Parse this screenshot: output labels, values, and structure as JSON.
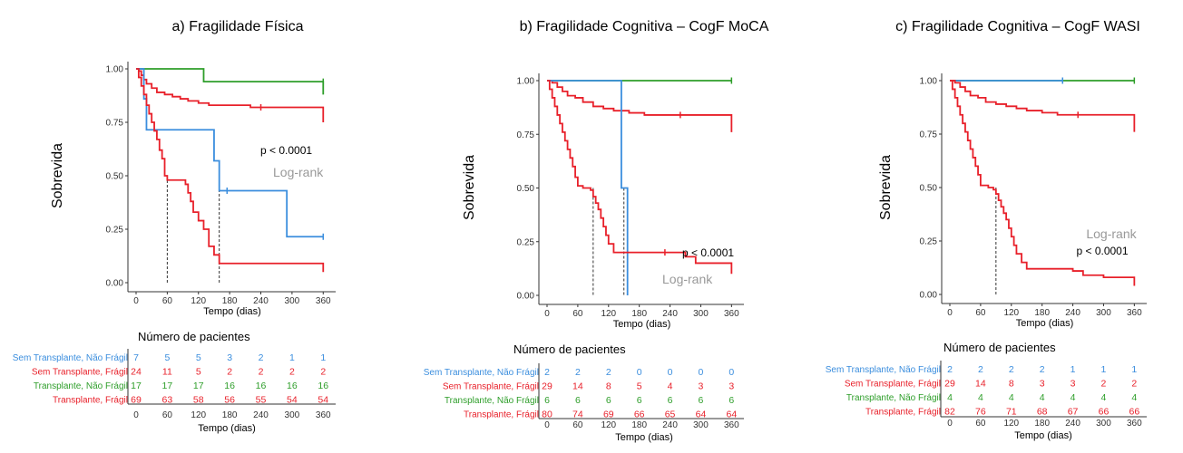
{
  "colors": {
    "blue": "#3b8ede",
    "red": "#e8202a",
    "green": "#2e9e2a",
    "axis": "#333333",
    "logrank": "#999999"
  },
  "risk_table_title": "Número de pacientes",
  "chart_data": [
    {
      "type": "line",
      "title": "a) Fragilidade Física",
      "xlabel": "Tempo (dias)",
      "ylabel": "Sobrevida",
      "xlim": [
        0,
        370
      ],
      "ylim": [
        0,
        1
      ],
      "x_ticks": [
        "0",
        "60",
        "120",
        "180",
        "240",
        "300",
        "360"
      ],
      "y_ticks": [
        "0.00",
        "0.25",
        "0.50",
        "0.75",
        "1.00"
      ],
      "annotation": {
        "pvalue": "p < 0.0001",
        "test": "Log-rank"
      },
      "series": [
        {
          "color_key": "green",
          "censor_x": [
            360
          ],
          "points": [
            [
              0,
              1
            ],
            [
              130,
              1
            ],
            [
              130,
              0.94
            ],
            [
              360,
              0.94
            ],
            [
              360,
              0.88
            ]
          ]
        },
        {
          "color_key": "red",
          "censor_x": [
            240
          ],
          "points": [
            [
              0,
              1
            ],
            [
              5,
              0.99
            ],
            [
              10,
              0.97
            ],
            [
              15,
              0.95
            ],
            [
              20,
              0.93
            ],
            [
              30,
              0.91
            ],
            [
              40,
              0.89
            ],
            [
              55,
              0.88
            ],
            [
              70,
              0.87
            ],
            [
              85,
              0.86
            ],
            [
              100,
              0.85
            ],
            [
              120,
              0.84
            ],
            [
              140,
              0.83
            ],
            [
              180,
              0.83
            ],
            [
              220,
              0.82
            ],
            [
              360,
              0.82
            ],
            [
              360,
              0.75
            ]
          ]
        },
        {
          "color_key": "blue",
          "censor_x": [
            175,
            360
          ],
          "points": [
            [
              0,
              1
            ],
            [
              15,
              1
            ],
            [
              15,
              0.86
            ],
            [
              20,
              0.86
            ],
            [
              20,
              0.715
            ],
            [
              150,
              0.715
            ],
            [
              150,
              0.57
            ],
            [
              160,
              0.57
            ],
            [
              160,
              0.43
            ],
            [
              290,
              0.43
            ],
            [
              290,
              0.215
            ],
            [
              360,
              0.215
            ]
          ]
        },
        {
          "color_key": "red",
          "censor_x": [],
          "points": [
            [
              0,
              1
            ],
            [
              5,
              0.96
            ],
            [
              10,
              0.92
            ],
            [
              15,
              0.88
            ],
            [
              20,
              0.83
            ],
            [
              25,
              0.79
            ],
            [
              30,
              0.75
            ],
            [
              35,
              0.71
            ],
            [
              40,
              0.67
            ],
            [
              45,
              0.62
            ],
            [
              50,
              0.58
            ],
            [
              55,
              0.5
            ],
            [
              60,
              0.48
            ],
            [
              70,
              0.48
            ],
            [
              80,
              0.48
            ],
            [
              90,
              0.48
            ],
            [
              95,
              0.46
            ],
            [
              100,
              0.42
            ],
            [
              105,
              0.38
            ],
            [
              110,
              0.33
            ],
            [
              120,
              0.29
            ],
            [
              130,
              0.25
            ],
            [
              140,
              0.17
            ],
            [
              150,
              0.13
            ],
            [
              160,
              0.09
            ],
            [
              360,
              0.09
            ],
            [
              360,
              0.05
            ]
          ]
        }
      ],
      "median_lines": [
        {
          "x": 60,
          "y": 0.5
        },
        {
          "x": 160,
          "y": 0.5
        }
      ],
      "risk_table": {
        "columns": [
          "0",
          "60",
          "120",
          "180",
          "240",
          "300",
          "360"
        ],
        "rows": [
          {
            "label": "Sem Transplante, Não Frágil",
            "color_key": "blue",
            "values": [
              "7",
              "5",
              "5",
              "3",
              "2",
              "1",
              "1"
            ]
          },
          {
            "label": "Sem Transplante, Frágil",
            "color_key": "red",
            "values": [
              "24",
              "11",
              "5",
              "2",
              "2",
              "2",
              "2"
            ]
          },
          {
            "label": "Transplante, Não Frágil",
            "color_key": "green",
            "values": [
              "17",
              "17",
              "17",
              "16",
              "16",
              "16",
              "16"
            ]
          },
          {
            "label": "Transplante, Frágil",
            "color_key": "red",
            "values": [
              "69",
              "63",
              "58",
              "56",
              "55",
              "54",
              "54"
            ]
          }
        ],
        "xlabel": "Tempo (dias)"
      }
    },
    {
      "type": "line",
      "title": "b) Fragilidade Cognitiva – CogF MoCA",
      "xlabel": "Tempo (dias)",
      "ylabel": "Sobrevida",
      "xlim": [
        0,
        370
      ],
      "ylim": [
        0,
        1
      ],
      "x_ticks": [
        "0",
        "60",
        "120",
        "180",
        "240",
        "300",
        "360"
      ],
      "y_ticks": [
        "0.00",
        "0.25",
        "0.50",
        "0.75",
        "1.00"
      ],
      "annotation": {
        "pvalue": "p < 0.0001",
        "test": "Log-rank"
      },
      "series": [
        {
          "color_key": "green",
          "censor_x": [
            360
          ],
          "points": [
            [
              0,
              1
            ],
            [
              360,
              1
            ]
          ]
        },
        {
          "color_key": "red",
          "censor_x": [
            260
          ],
          "points": [
            [
              0,
              1
            ],
            [
              10,
              0.99
            ],
            [
              20,
              0.97
            ],
            [
              30,
              0.95
            ],
            [
              40,
              0.93
            ],
            [
              55,
              0.92
            ],
            [
              70,
              0.9
            ],
            [
              90,
              0.88
            ],
            [
              110,
              0.87
            ],
            [
              130,
              0.86
            ],
            [
              160,
              0.85
            ],
            [
              190,
              0.84
            ],
            [
              220,
              0.84
            ],
            [
              360,
              0.84
            ],
            [
              360,
              0.76
            ]
          ]
        },
        {
          "color_key": "blue",
          "censor_x": [],
          "points": [
            [
              0,
              1
            ],
            [
              145,
              1
            ],
            [
              145,
              0.5
            ],
            [
              157,
              0.5
            ],
            [
              157,
              0
            ]
          ]
        },
        {
          "color_key": "red",
          "censor_x": [
            230
          ],
          "points": [
            [
              0,
              1
            ],
            [
              5,
              0.96
            ],
            [
              10,
              0.92
            ],
            [
              15,
              0.88
            ],
            [
              20,
              0.84
            ],
            [
              25,
              0.8
            ],
            [
              30,
              0.76
            ],
            [
              35,
              0.72
            ],
            [
              40,
              0.68
            ],
            [
              45,
              0.64
            ],
            [
              50,
              0.6
            ],
            [
              55,
              0.55
            ],
            [
              60,
              0.51
            ],
            [
              70,
              0.5
            ],
            [
              85,
              0.49
            ],
            [
              90,
              0.46
            ],
            [
              95,
              0.43
            ],
            [
              100,
              0.4
            ],
            [
              105,
              0.36
            ],
            [
              110,
              0.32
            ],
            [
              115,
              0.28
            ],
            [
              120,
              0.24
            ],
            [
              130,
              0.2
            ],
            [
              260,
              0.2
            ],
            [
              270,
              0.18
            ],
            [
              290,
              0.15
            ],
            [
              360,
              0.15
            ],
            [
              360,
              0.1
            ]
          ]
        }
      ],
      "median_lines": [
        {
          "x": 90,
          "y": 0.5
        },
        {
          "x": 150,
          "y": 0.5
        }
      ],
      "risk_table": {
        "columns": [
          "0",
          "60",
          "120",
          "180",
          "240",
          "300",
          "360"
        ],
        "rows": [
          {
            "label": "Sem Transplante, Não Frágil",
            "color_key": "blue",
            "values": [
              "2",
              "2",
              "2",
              "0",
              "0",
              "0",
              "0"
            ]
          },
          {
            "label": "Sem Transplante, Frágil",
            "color_key": "red",
            "values": [
              "29",
              "14",
              "8",
              "5",
              "4",
              "3",
              "3"
            ]
          },
          {
            "label": "Transplante, Não Frágil",
            "color_key": "green",
            "values": [
              "6",
              "6",
              "6",
              "6",
              "6",
              "6",
              "6"
            ]
          },
          {
            "label": "Transplante, Frágil",
            "color_key": "red",
            "values": [
              "80",
              "74",
              "69",
              "66",
              "65",
              "64",
              "64"
            ]
          }
        ],
        "xlabel": "Tempo (dias)"
      }
    },
    {
      "type": "line",
      "title": "c) Fragilidade Cognitiva – CogF WASI",
      "xlabel": "Tempo (dias)",
      "ylabel": "Sobrevida",
      "xlim": [
        0,
        370
      ],
      "ylim": [
        0,
        1
      ],
      "x_ticks": [
        "0",
        "60",
        "120",
        "180",
        "240",
        "300",
        "360"
      ],
      "y_ticks": [
        "0.00",
        "0.25",
        "0.50",
        "0.75",
        "1.00"
      ],
      "annotation": {
        "pvalue": "p < 0.0001",
        "test": "Log-rank"
      },
      "series": [
        {
          "color_key": "green",
          "censor_x": [
            360
          ],
          "points": [
            [
              0,
              1
            ],
            [
              360,
              1
            ]
          ]
        },
        {
          "color_key": "blue",
          "censor_x": [
            220
          ],
          "points": [
            [
              0,
              1
            ],
            [
              220,
              1
            ]
          ]
        },
        {
          "color_key": "red",
          "censor_x": [
            250
          ],
          "points": [
            [
              0,
              1
            ],
            [
              10,
              0.99
            ],
            [
              20,
              0.97
            ],
            [
              30,
              0.95
            ],
            [
              40,
              0.93
            ],
            [
              55,
              0.92
            ],
            [
              70,
              0.9
            ],
            [
              90,
              0.89
            ],
            [
              110,
              0.88
            ],
            [
              130,
              0.87
            ],
            [
              150,
              0.86
            ],
            [
              180,
              0.85
            ],
            [
              210,
              0.84
            ],
            [
              240,
              0.84
            ],
            [
              360,
              0.84
            ],
            [
              360,
              0.76
            ]
          ]
        },
        {
          "color_key": "red",
          "censor_x": [],
          "points": [
            [
              0,
              1
            ],
            [
              5,
              0.96
            ],
            [
              10,
              0.92
            ],
            [
              15,
              0.88
            ],
            [
              20,
              0.84
            ],
            [
              25,
              0.8
            ],
            [
              30,
              0.76
            ],
            [
              35,
              0.72
            ],
            [
              40,
              0.68
            ],
            [
              45,
              0.64
            ],
            [
              50,
              0.6
            ],
            [
              55,
              0.56
            ],
            [
              60,
              0.51
            ],
            [
              75,
              0.5
            ],
            [
              85,
              0.49
            ],
            [
              90,
              0.47
            ],
            [
              95,
              0.44
            ],
            [
              100,
              0.41
            ],
            [
              105,
              0.38
            ],
            [
              110,
              0.35
            ],
            [
              115,
              0.31
            ],
            [
              120,
              0.27
            ],
            [
              125,
              0.23
            ],
            [
              130,
              0.19
            ],
            [
              140,
              0.15
            ],
            [
              150,
              0.12
            ],
            [
              200,
              0.12
            ],
            [
              240,
              0.11
            ],
            [
              260,
              0.09
            ],
            [
              300,
              0.08
            ],
            [
              340,
              0.08
            ],
            [
              360,
              0.08
            ],
            [
              360,
              0.04
            ]
          ]
        }
      ],
      "median_lines": [
        {
          "x": 90,
          "y": 0.5
        }
      ],
      "risk_table": {
        "columns": [
          "0",
          "60",
          "120",
          "180",
          "240",
          "300",
          "360"
        ],
        "rows": [
          {
            "label": "Sem Transplante, Não Frágil",
            "color_key": "blue",
            "values": [
              "2",
              "2",
              "2",
              "2",
              "1",
              "1",
              "1"
            ]
          },
          {
            "label": "Sem Transplante, Frágil",
            "color_key": "red",
            "values": [
              "29",
              "14",
              "8",
              "3",
              "3",
              "2",
              "2"
            ]
          },
          {
            "label": "Transplante, Não Frágil",
            "color_key": "green",
            "values": [
              "4",
              "4",
              "4",
              "4",
              "4",
              "4",
              "4"
            ]
          },
          {
            "label": "Transplante, Frágil",
            "color_key": "red",
            "values": [
              "82",
              "76",
              "71",
              "68",
              "67",
              "66",
              "66"
            ]
          }
        ],
        "xlabel": "Tempo (dias)"
      }
    }
  ]
}
